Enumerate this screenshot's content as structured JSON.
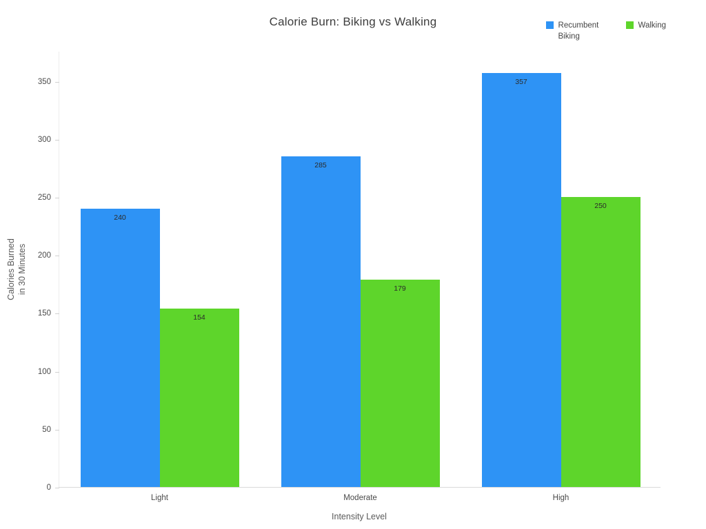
{
  "chart_data": {
    "type": "bar",
    "title": "Calorie Burn: Biking vs Walking",
    "xlabel": "Intensity Level",
    "ylabel": "Calories Burned\nin 30 Minutes",
    "categories": [
      "Light",
      "Moderate",
      "High"
    ],
    "series": [
      {
        "name": "Recumbent Biking",
        "color": "#2E93F5",
        "values": [
          240,
          285,
          357
        ]
      },
      {
        "name": "Walking",
        "color": "#5ED52B",
        "values": [
          154,
          179,
          250
        ]
      }
    ],
    "ylim": [
      0,
      376
    ],
    "yticks": [
      0,
      50,
      100,
      150,
      200,
      250,
      300,
      350
    ],
    "grid": false,
    "legend_position": "top-right",
    "bar_value_labels": [
      "240",
      "285",
      "357",
      "154",
      "179",
      "250"
    ]
  }
}
